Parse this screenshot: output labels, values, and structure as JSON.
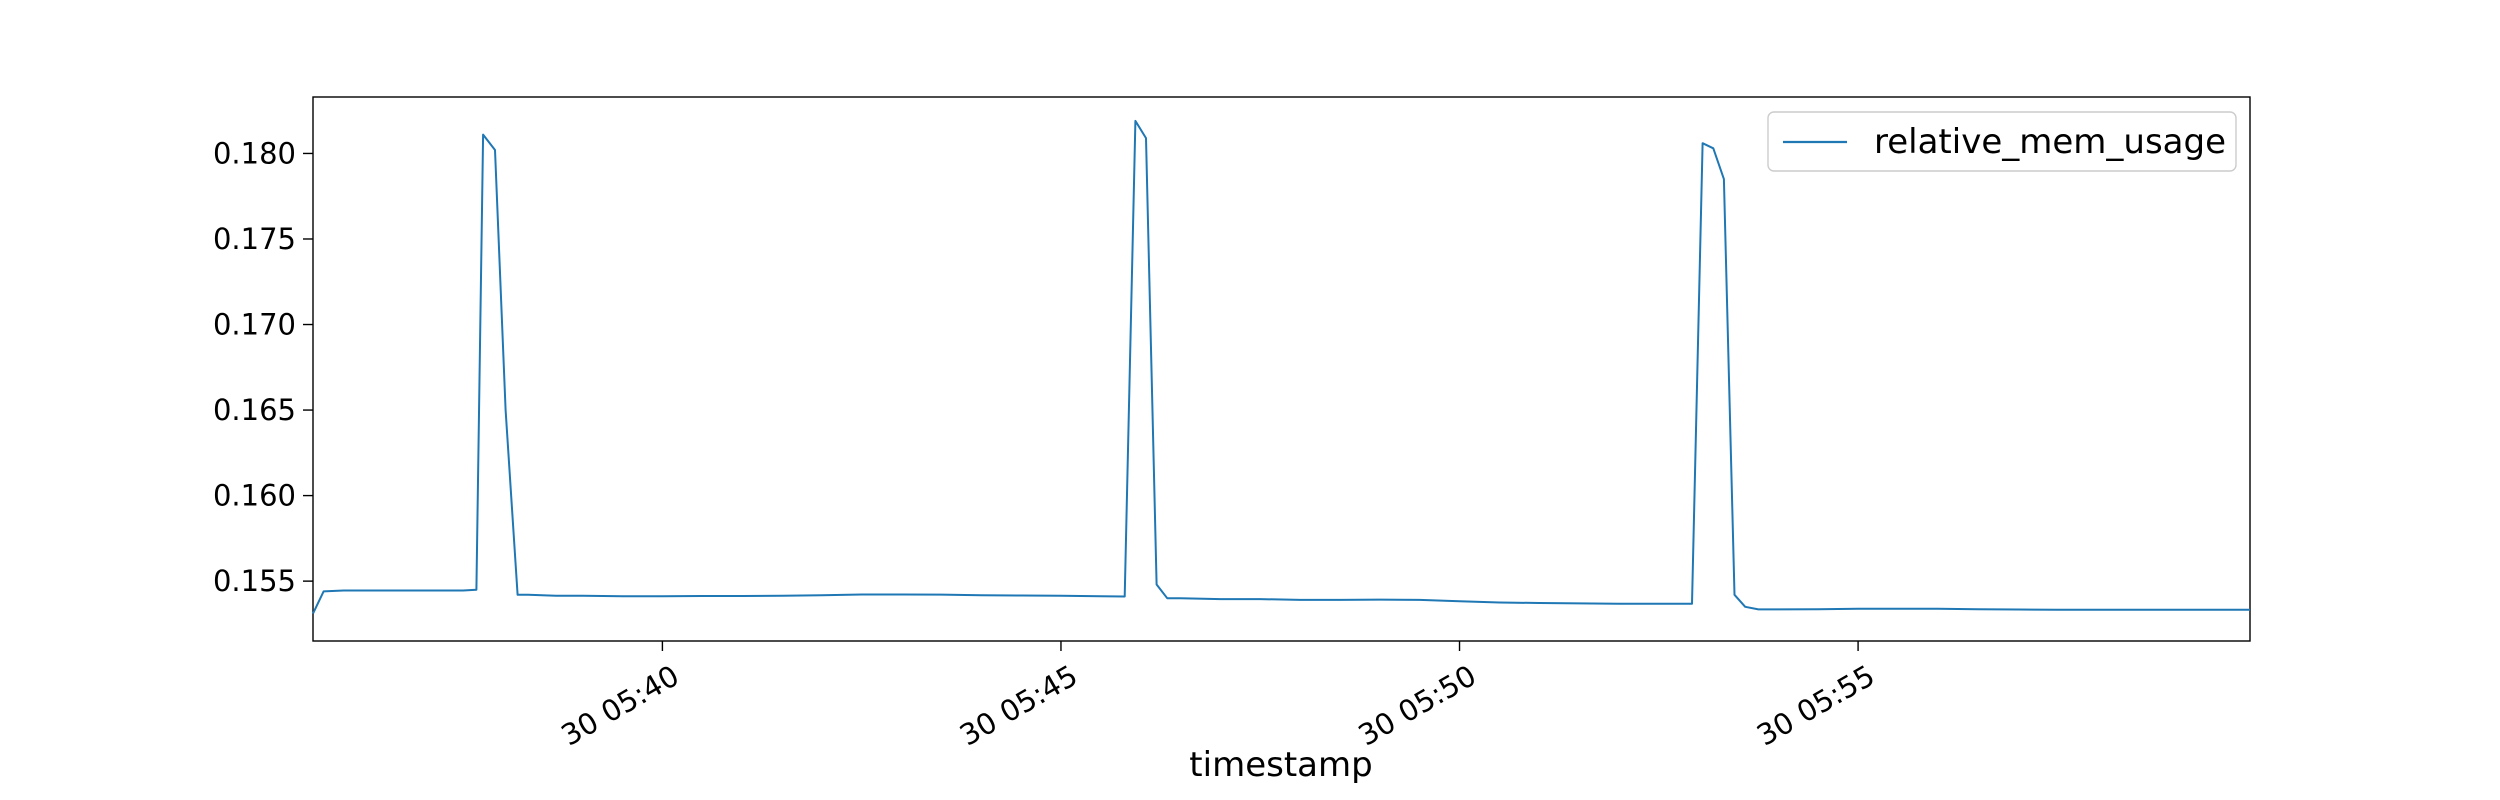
{
  "chart_data": {
    "type": "line",
    "title": "",
    "xlabel": "timestamp",
    "ylabel": "",
    "x_unit": "minutes",
    "xlim": [
      "05:35:37",
      "05:59:55"
    ],
    "ylim": [
      0.1515,
      0.1833
    ],
    "grid": false,
    "legend_position": "top-right",
    "x_ticks": [
      {
        "value": "05:40:00",
        "label": "30 05:40"
      },
      {
        "value": "05:45:00",
        "label": "30 05:45"
      },
      {
        "value": "05:50:00",
        "label": "30 05:50"
      },
      {
        "value": "05:55:00",
        "label": "30 05:55"
      }
    ],
    "y_ticks": [
      {
        "value": 0.155,
        "label": "0.155"
      },
      {
        "value": 0.16,
        "label": "0.160"
      },
      {
        "value": 0.165,
        "label": "0.165"
      },
      {
        "value": 0.17,
        "label": "0.170"
      },
      {
        "value": 0.175,
        "label": "0.175"
      },
      {
        "value": 0.18,
        "label": "0.180"
      }
    ],
    "series": [
      {
        "name": "relative_mem_usage",
        "color": "#1f77b4",
        "x": [
          "05:35:37",
          "05:35:45",
          "05:36:00",
          "05:36:30",
          "05:37:00",
          "05:37:15",
          "05:37:30",
          "05:37:40",
          "05:37:45",
          "05:37:54",
          "05:38:02",
          "05:38:11",
          "05:38:19",
          "05:38:40",
          "05:39:00",
          "05:39:30",
          "05:40:00",
          "05:40:30",
          "05:41:00",
          "05:41:30",
          "05:42:00",
          "05:42:30",
          "05:43:00",
          "05:43:30",
          "05:44:00",
          "05:44:30",
          "05:45:00",
          "05:45:30",
          "05:45:48",
          "05:45:56",
          "05:46:04",
          "05:46:12",
          "05:46:20",
          "05:46:30",
          "05:47:00",
          "05:47:30",
          "05:48:00",
          "05:48:30",
          "05:49:00",
          "05:49:30",
          "05:50:00",
          "05:50:30",
          "05:51:00",
          "05:51:30",
          "05:52:00",
          "05:52:30",
          "05:52:55",
          "05:53:03",
          "05:53:11",
          "05:53:19",
          "05:53:27",
          "05:53:35",
          "05:53:45",
          "05:54:00",
          "05:54:30",
          "05:55:00",
          "05:55:30",
          "05:56:00",
          "05:56:30",
          "05:57:00",
          "05:57:30",
          "05:58:00",
          "05:58:30",
          "05:59:00",
          "05:59:30",
          "05:59:55"
        ],
        "y": [
          0.1531,
          0.1544,
          0.15445,
          0.15445,
          0.15445,
          0.15445,
          0.15445,
          0.1545,
          0.1811,
          0.1802,
          0.165,
          0.1542,
          0.1542,
          0.15415,
          0.15415,
          0.15412,
          0.15412,
          0.15413,
          0.15413,
          0.15415,
          0.15418,
          0.15422,
          0.15422,
          0.15421,
          0.15418,
          0.15416,
          0.15414,
          0.15412,
          0.1541,
          0.1819,
          0.1809,
          0.1548,
          0.154,
          0.154,
          0.15395,
          0.15395,
          0.1539,
          0.1539,
          0.15392,
          0.1539,
          0.15382,
          0.15375,
          0.15372,
          0.1537,
          0.15368,
          0.15368,
          0.15368,
          0.1806,
          0.1803,
          0.1785,
          0.1542,
          0.1535,
          0.15335,
          0.15335,
          0.15336,
          0.15338,
          0.15338,
          0.15338,
          0.15336,
          0.15334,
          0.15333,
          0.15333,
          0.15333,
          0.15333,
          0.15333,
          0.15333
        ]
      }
    ]
  }
}
